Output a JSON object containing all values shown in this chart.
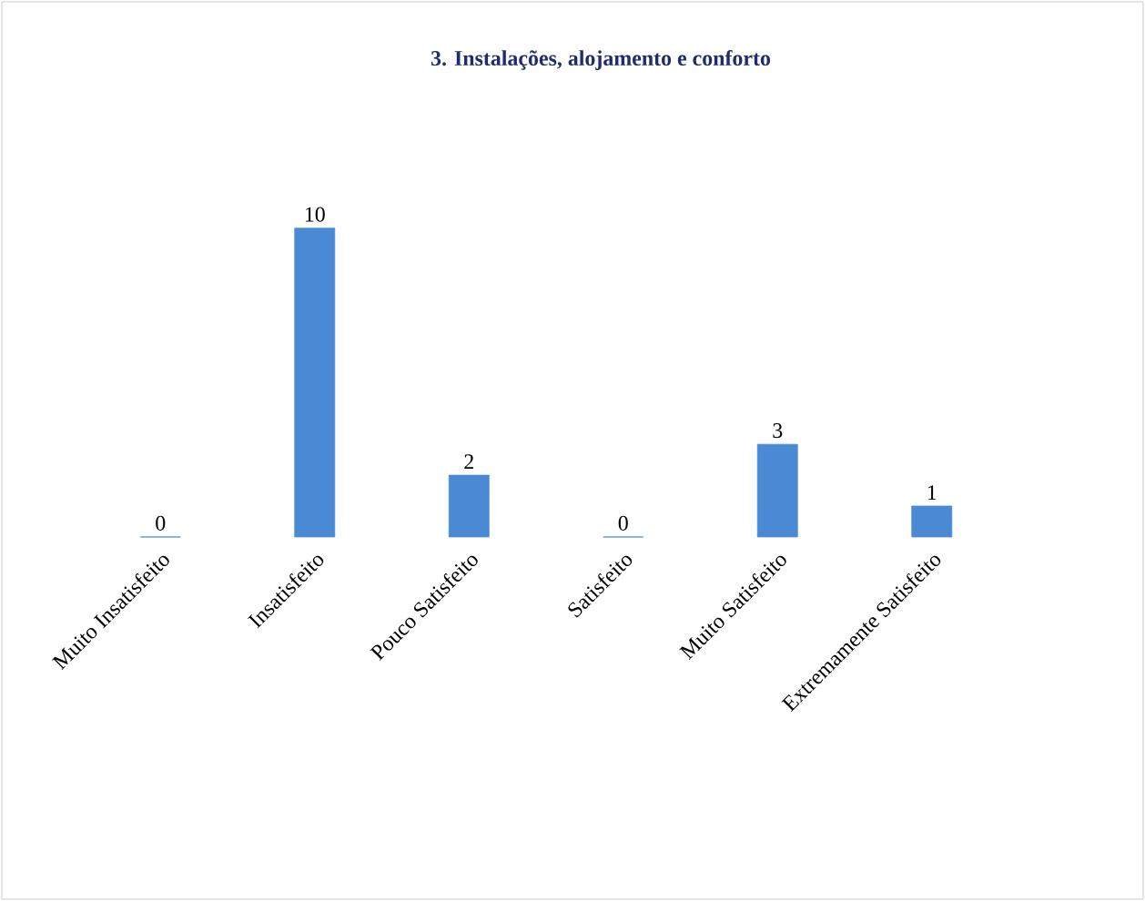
{
  "chart_data": {
    "type": "bar",
    "title": "3. Instalações, alojamento e conforto",
    "categories": [
      "Muito Insatisfeito",
      "Insatisfeito",
      "Pouco Satisfeito",
      "Satisfeito",
      "Muito Satisfeito",
      "Extremamente Satisfeito"
    ],
    "values": [
      0,
      10,
      2,
      0,
      3,
      1
    ],
    "color": "#4a8ad4",
    "data_labels": true
  }
}
